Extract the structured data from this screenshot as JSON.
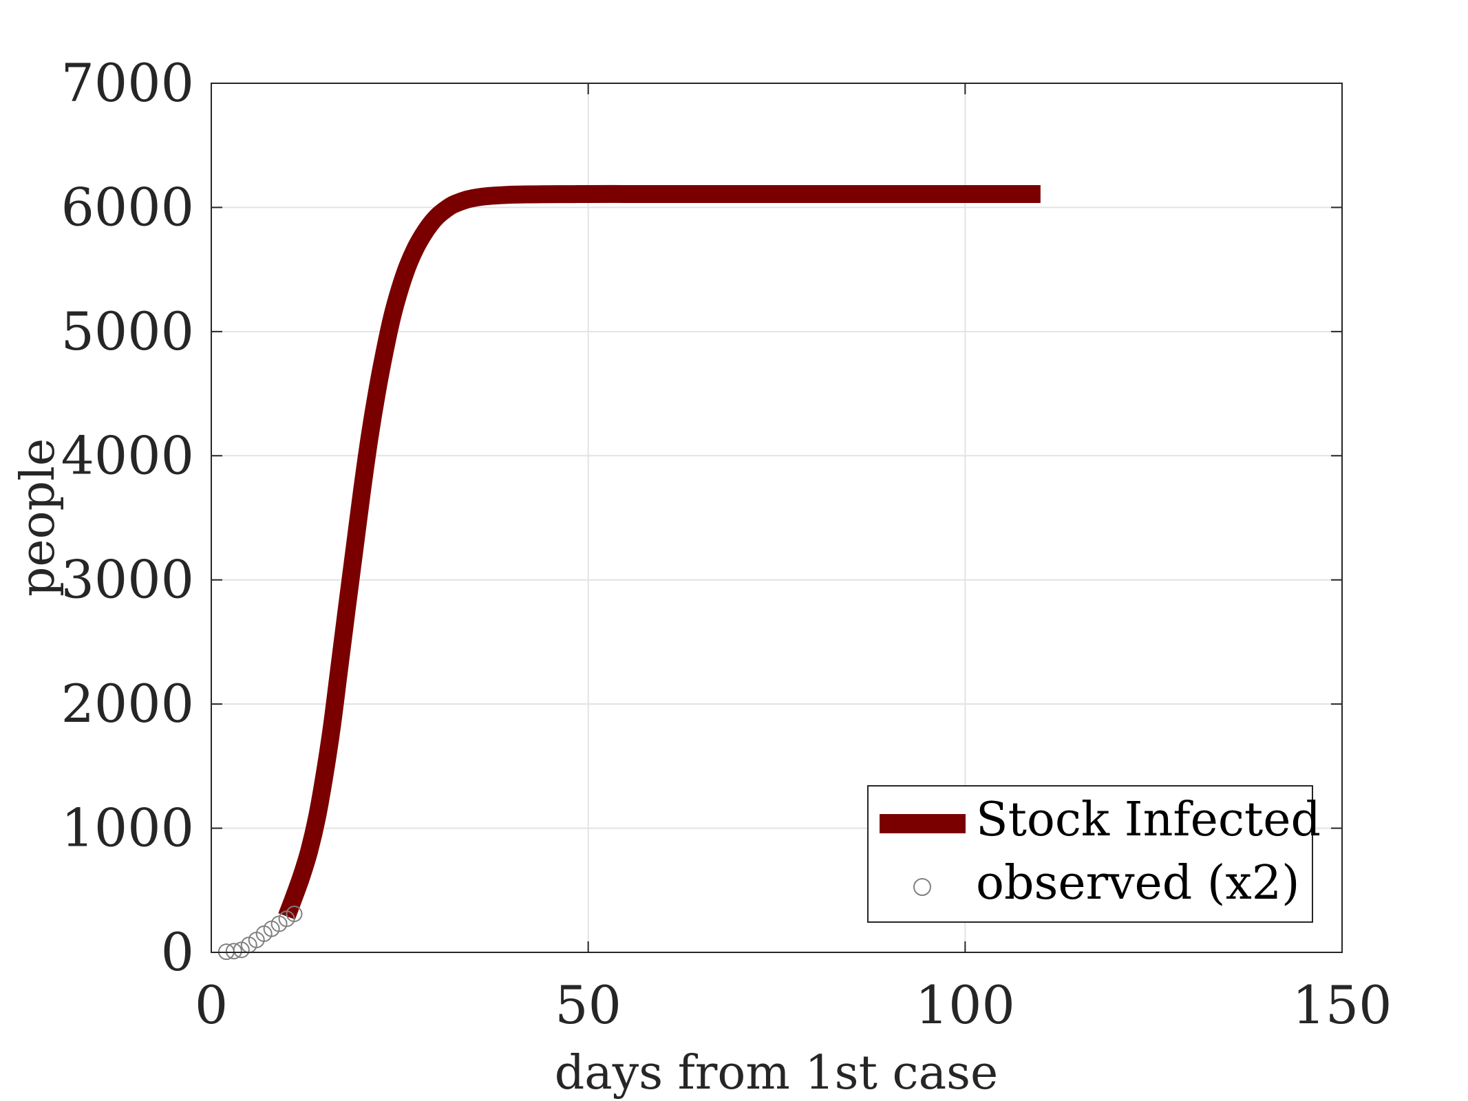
{
  "chart_data": {
    "type": "line",
    "xlabel": "days from 1st case",
    "ylabel": "people",
    "xlim": [
      0,
      150
    ],
    "ylim": [
      0,
      7000
    ],
    "xticks": [
      0,
      50,
      100,
      150
    ],
    "yticks": [
      0,
      1000,
      2000,
      3000,
      4000,
      5000,
      6000,
      7000
    ],
    "xtick_labels": [
      "0",
      "50",
      "100",
      "150"
    ],
    "ytick_labels": [
      "0",
      "1000",
      "2000",
      "3000",
      "4000",
      "5000",
      "6000",
      "7000"
    ],
    "grid": true,
    "legend_position": "bottom-right",
    "series": [
      {
        "name": "Stock Infected",
        "style": "line",
        "color": "#7a0000",
        "x": [
          10,
          11,
          12,
          13,
          14,
          15,
          16,
          17,
          18,
          19,
          20,
          21,
          22,
          23,
          24,
          25,
          26,
          27,
          28,
          29,
          30,
          31,
          32,
          33,
          34,
          35,
          36,
          37,
          38,
          39,
          40,
          42,
          44,
          46,
          48,
          50,
          55,
          60,
          70,
          80,
          90,
          100,
          110
        ],
        "y": [
          290,
          450,
          620,
          820,
          1080,
          1420,
          1820,
          2300,
          2780,
          3250,
          3720,
          4150,
          4520,
          4840,
          5120,
          5340,
          5520,
          5660,
          5770,
          5860,
          5930,
          5980,
          6020,
          6045,
          6065,
          6078,
          6087,
          6093,
          6097,
          6100,
          6103,
          6105,
          6106,
          6107,
          6107,
          6108,
          6108,
          6108,
          6108,
          6108,
          6108,
          6108,
          6108
        ]
      },
      {
        "name": "observed (x2)",
        "style": "markers",
        "marker": "circle",
        "color": "#808080",
        "x": [
          2,
          3,
          4,
          5,
          6,
          7,
          8,
          9,
          10,
          11
        ],
        "y": [
          5,
          10,
          20,
          60,
          100,
          150,
          190,
          230,
          270,
          310
        ]
      }
    ]
  }
}
